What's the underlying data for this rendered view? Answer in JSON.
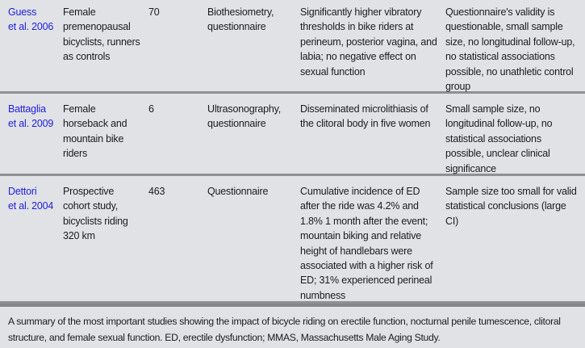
{
  "table": {
    "rows": [
      {
        "study": "Guess\net al. 2006",
        "population": "Female premenopausal bicyclists, runners as controls",
        "n": "70",
        "methods": "Biothesiometry, questionnaire",
        "results": "Significantly higher vibratory thresholds in bike riders at perineum, posterior vagina, and labia; no negative effect on sexual function",
        "limitations": "Questionnaire's validity is questionable, small sample size, no longitudinal follow-up, no statistical associations possible, no unathletic control group"
      },
      {
        "study": "Battaglia\net al. 2009",
        "population": "Female horseback and mountain bike riders",
        "n": "6",
        "methods": "Ultrasonography, questionnaire",
        "results": "Disseminated microlithiasis of the clitoral body in five women",
        "limitations": "Small sample size, no longitudinal follow-up, no statistical associations possible, unclear clinical significance"
      },
      {
        "study": "Dettori\net al. 2004",
        "population": "Prospective cohort study, bicyclists riding 320 km",
        "n": "463",
        "methods": "Questionnaire",
        "results": "Cumulative incidence of ED after the ride was 4.2% and 1.8% 1 month after the event; mountain biking and relative height of handlebars were associated with a higher risk of ED; 31% experienced perineal numbness",
        "limitations": "Sample size too small for valid statistical conclusions (large CI)"
      }
    ]
  },
  "caption": {
    "text": "A summary of the most important studies showing the impact of bicycle riding on erectile function, nocturnal penile tumescence, clitoral structure, and female sexual function. ED, erectile dysfunction; MMAS, Massachusetts Male Aging Study."
  },
  "colors": {
    "background": "#e0e2e5",
    "citation_blue": "#1e1edd",
    "row_divider": "#8d9094",
    "caption_divider": "#84878b",
    "text": "#1b1c1e"
  }
}
